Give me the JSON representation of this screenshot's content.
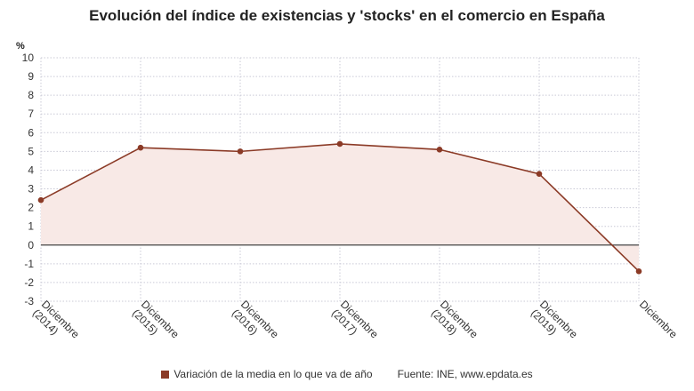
{
  "chart_data": {
    "type": "area",
    "title": "Evolución del índice de existencias y 'stocks' en el comercio en España",
    "ylabel": "%",
    "xlabel": "",
    "ylim": [
      -3,
      10
    ],
    "yticks": [
      10,
      9,
      8,
      7,
      6,
      5,
      4,
      3,
      2,
      1,
      0,
      -1,
      -2,
      -3
    ],
    "categories": [
      "Diciembre (2014)",
      "Diciembre (2015)",
      "Diciembre (2016)",
      "Diciembre (2017)",
      "Diciembre (2018)",
      "Diciembre (2019)",
      "Diciembre"
    ],
    "category_lines": [
      [
        "Diciembre",
        "(2014)"
      ],
      [
        "Diciembre",
        "(2015)"
      ],
      [
        "Diciembre",
        "(2016)"
      ],
      [
        "Diciembre",
        "(2017)"
      ],
      [
        "Diciembre",
        "(2018)"
      ],
      [
        "Diciembre",
        "(2019)"
      ],
      [
        "Diciembre",
        ""
      ]
    ],
    "series": [
      {
        "name": "Variación de la media en lo que va de año",
        "values": [
          2.4,
          5.2,
          5.0,
          5.4,
          5.1,
          3.8,
          -1.4
        ]
      }
    ],
    "grid": true,
    "legend": "bottom",
    "colors": {
      "line": "#8b3a26",
      "fill": "#f8e9e6",
      "grid": "#c9c9d6",
      "zero": "#444444"
    }
  },
  "footer": {
    "legend_label": "Variación de la media en lo que va de año",
    "source": "Fuente: INE, www.epdata.es"
  }
}
